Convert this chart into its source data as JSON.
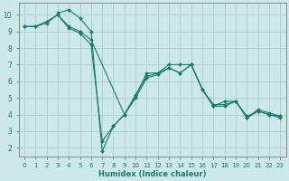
{
  "xlabel": "Humidex (Indice chaleur)",
  "ylabel": "",
  "background_color": "#cce8e8",
  "grid_color": "#aacccc",
  "line_color": "#1a7a6e",
  "xlim": [
    -0.5,
    23.5
  ],
  "ylim": [
    1.5,
    10.7
  ],
  "xticks": [
    0,
    1,
    2,
    3,
    4,
    5,
    6,
    7,
    8,
    9,
    10,
    11,
    12,
    13,
    14,
    15,
    16,
    17,
    18,
    19,
    20,
    21,
    22,
    23
  ],
  "yticks": [
    2,
    3,
    4,
    5,
    6,
    7,
    8,
    9,
    10
  ],
  "series": [
    {
      "x": [
        0,
        1,
        2,
        3,
        4,
        5,
        6,
        9,
        10,
        11,
        12,
        13,
        14,
        15,
        16,
        17,
        18,
        19,
        20,
        21,
        22,
        23
      ],
      "y": [
        9.3,
        9.3,
        9.5,
        10.0,
        9.3,
        9.0,
        8.5,
        4.0,
        5.2,
        6.3,
        6.5,
        6.8,
        6.5,
        7.0,
        5.5,
        4.5,
        4.5,
        4.8,
        3.8,
        4.2,
        4.0,
        3.8
      ]
    },
    {
      "x": [
        3,
        4,
        5,
        6,
        7,
        8,
        9,
        10,
        11,
        12,
        13,
        14,
        15,
        16,
        17,
        18,
        19,
        20,
        21,
        22,
        23
      ],
      "y": [
        10.1,
        10.3,
        9.8,
        9.0,
        1.8,
        3.3,
        4.0,
        5.1,
        6.5,
        6.5,
        7.0,
        7.0,
        7.0,
        5.5,
        4.5,
        4.8,
        4.8,
        3.8,
        4.3,
        4.1,
        3.9
      ]
    },
    {
      "x": [
        0,
        1,
        2,
        3,
        4,
        5,
        6,
        7,
        8,
        9,
        10,
        11,
        12,
        13,
        14,
        15,
        16,
        17,
        18,
        19,
        20,
        21,
        22,
        23
      ],
      "y": [
        9.3,
        9.3,
        9.6,
        10.0,
        9.2,
        8.9,
        8.2,
        2.4,
        3.3,
        4.0,
        5.0,
        6.2,
        6.4,
        6.8,
        6.5,
        7.0,
        5.5,
        4.6,
        4.6,
        4.8,
        3.9,
        4.2,
        4.0,
        3.9
      ]
    }
  ]
}
